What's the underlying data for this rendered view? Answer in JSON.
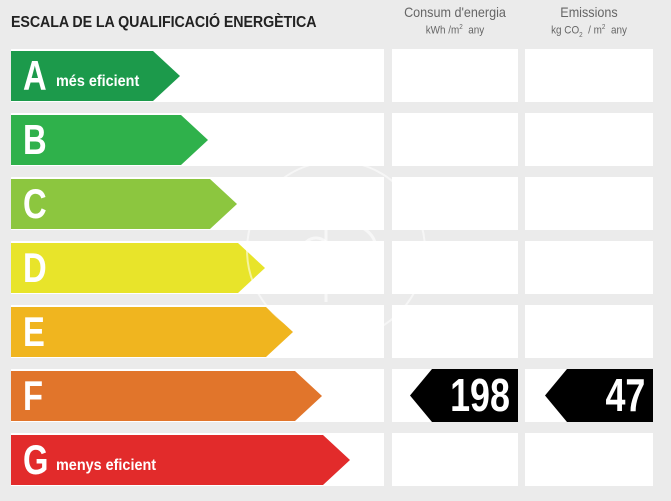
{
  "header": {
    "title": "ESCALA DE LA QUALIFICACIÓ ENERGÈTICA",
    "consum_title": "Consum d'energia",
    "consum_unit_a": "kWh /m",
    "consum_unit_sup": "2",
    "consum_unit_b": "  any",
    "emis_title": "Emissions",
    "emis_unit_a": "kg CO",
    "emis_unit_sub": "2",
    "emis_unit_b": "  / m",
    "emis_unit_sup": "2",
    "emis_unit_c": "  any"
  },
  "ratings": [
    {
      "letter": "A",
      "label": "més eficient",
      "color": "#1c9a4b"
    },
    {
      "letter": "B",
      "label": "",
      "color": "#2fb14b"
    },
    {
      "letter": "C",
      "label": "",
      "color": "#8cc63f"
    },
    {
      "letter": "D",
      "label": "",
      "color": "#e8e42a"
    },
    {
      "letter": "E",
      "label": "",
      "color": "#f0b51f"
    },
    {
      "letter": "F",
      "label": "",
      "color": "#e1752b"
    },
    {
      "letter": "G",
      "label": "menys eficient",
      "color": "#e22b2b"
    }
  ],
  "current": {
    "rating": "F",
    "consum_value": "198",
    "emissions_value": "47"
  }
}
